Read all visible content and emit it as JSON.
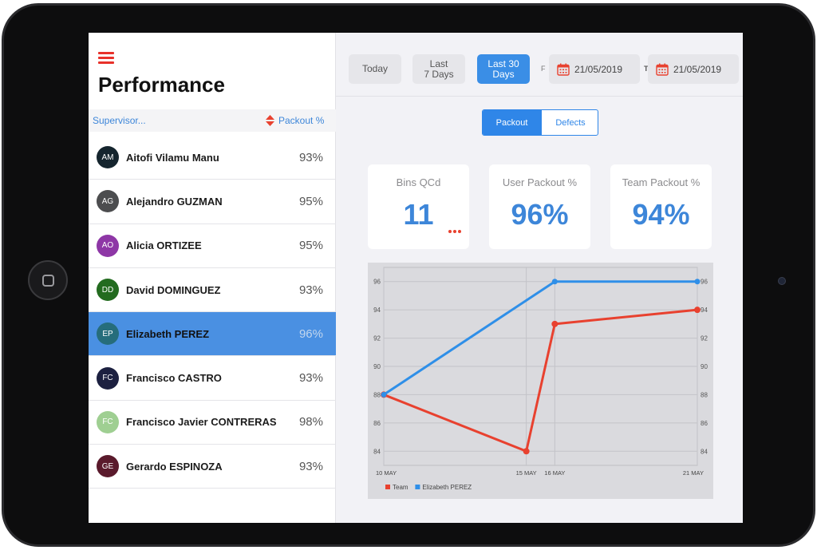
{
  "app": {
    "title": "Performance"
  },
  "list": {
    "supervisor_label": "Supervisor...",
    "packout_label": "Packout %",
    "rows": [
      {
        "initials": "AM",
        "name": "Aitofi Vilamu Manu",
        "pct": "93%",
        "color": "#15252e",
        "selected": false
      },
      {
        "initials": "AG",
        "name": "Alejandro GUZMAN",
        "pct": "95%",
        "color": "#4c4d4f",
        "selected": false
      },
      {
        "initials": "AO",
        "name": "Alicia ORTIZEE",
        "pct": "95%",
        "color": "#8e37a6",
        "selected": false
      },
      {
        "initials": "DD",
        "name": "David DOMINGUEZ",
        "pct": "93%",
        "color": "#236b1f",
        "selected": false
      },
      {
        "initials": "EP",
        "name": "Elizabeth PEREZ",
        "pct": "96%",
        "color": "#266d7b",
        "selected": true
      },
      {
        "initials": "FC",
        "name": "Francisco CASTRO",
        "pct": "93%",
        "color": "#1c2040",
        "selected": false
      },
      {
        "initials": "FC",
        "name": "Francisco Javier CONTRERAS",
        "pct": "98%",
        "color": "#9fcf92",
        "selected": false
      },
      {
        "initials": "GE",
        "name": "Gerardo ESPINOZA",
        "pct": "93%",
        "color": "#5a1a2c",
        "selected": false
      }
    ]
  },
  "filters": {
    "today": "Today",
    "last7_line1": "Last",
    "last7_line2": "7 Days",
    "last30_line1": "Last 30",
    "last30_line2": "Days",
    "from_label": "F",
    "from_date": "21/05/2019",
    "to_label": "To",
    "to_date": "21/05/2019"
  },
  "tabs": {
    "packout": "Packout",
    "defects": "Defects"
  },
  "cards": [
    {
      "label": "Bins QCd",
      "value": "11"
    },
    {
      "label": "User Packout %",
      "value": "96%"
    },
    {
      "label": "Team Packout %",
      "value": "94%"
    }
  ],
  "colors": {
    "accent": "#3a8ee6",
    "team": "#e8412f",
    "user": "#2f8fe8"
  },
  "chart_data": {
    "type": "line",
    "categories": [
      "10 MAY",
      "15 MAY",
      "16 MAY",
      "21 MAY"
    ],
    "x_days": [
      10,
      15,
      16,
      21
    ],
    "ylim": [
      83,
      97
    ],
    "yticks": [
      84,
      86,
      88,
      90,
      92,
      94,
      96
    ],
    "grid": true,
    "legend_position": "bottom-left",
    "series": [
      {
        "name": "Team",
        "color": "#e8412f",
        "values": [
          88,
          84,
          93,
          94
        ]
      },
      {
        "name": "Elizabeth PEREZ",
        "color": "#2f8fe8",
        "values": [
          88,
          null,
          96,
          96
        ]
      }
    ]
  }
}
